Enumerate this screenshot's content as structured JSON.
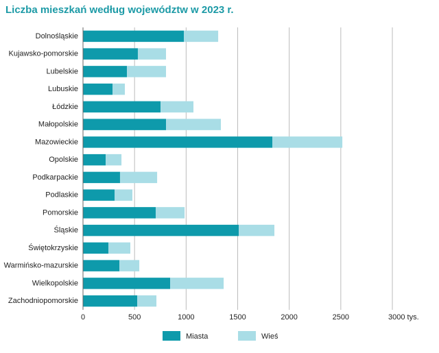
{
  "chart_data": {
    "type": "stacked-barh",
    "title": "Liczba mieszkań według województw w 2023 r.",
    "categories": [
      "Dolnośląskie",
      "Kujawsko-pomorskie",
      "Lubelskie",
      "Lubuskie",
      "Łódzkie",
      "Małopolskie",
      "Mazowieckie",
      "Opolskie",
      "Podkarpackie",
      "Podlaskie",
      "Pomorskie",
      "Śląskie",
      "Świętokrzyskie",
      "Warmińsko-mazurskie",
      "Wielkopolskie",
      "Zachodniopomorskie"
    ],
    "series": [
      {
        "name": "Miasta",
        "color": "#0e9aab",
        "values": [
          978,
          532,
          426,
          286,
          752,
          805,
          1836,
          220,
          359,
          306,
          705,
          1510,
          246,
          353,
          845,
          526
        ]
      },
      {
        "name": "Wieś",
        "color": "#a9dde6",
        "values": [
          333,
          273,
          379,
          120,
          319,
          532,
          679,
          153,
          360,
          173,
          280,
          346,
          213,
          193,
          519,
          186
        ]
      }
    ],
    "xlim": [
      0,
      3000
    ],
    "xticks": [
      0,
      500,
      1000,
      1500,
      2000,
      2500,
      {
        "value": 3000,
        "label": "3000 tys."
      }
    ],
    "grid": true
  }
}
